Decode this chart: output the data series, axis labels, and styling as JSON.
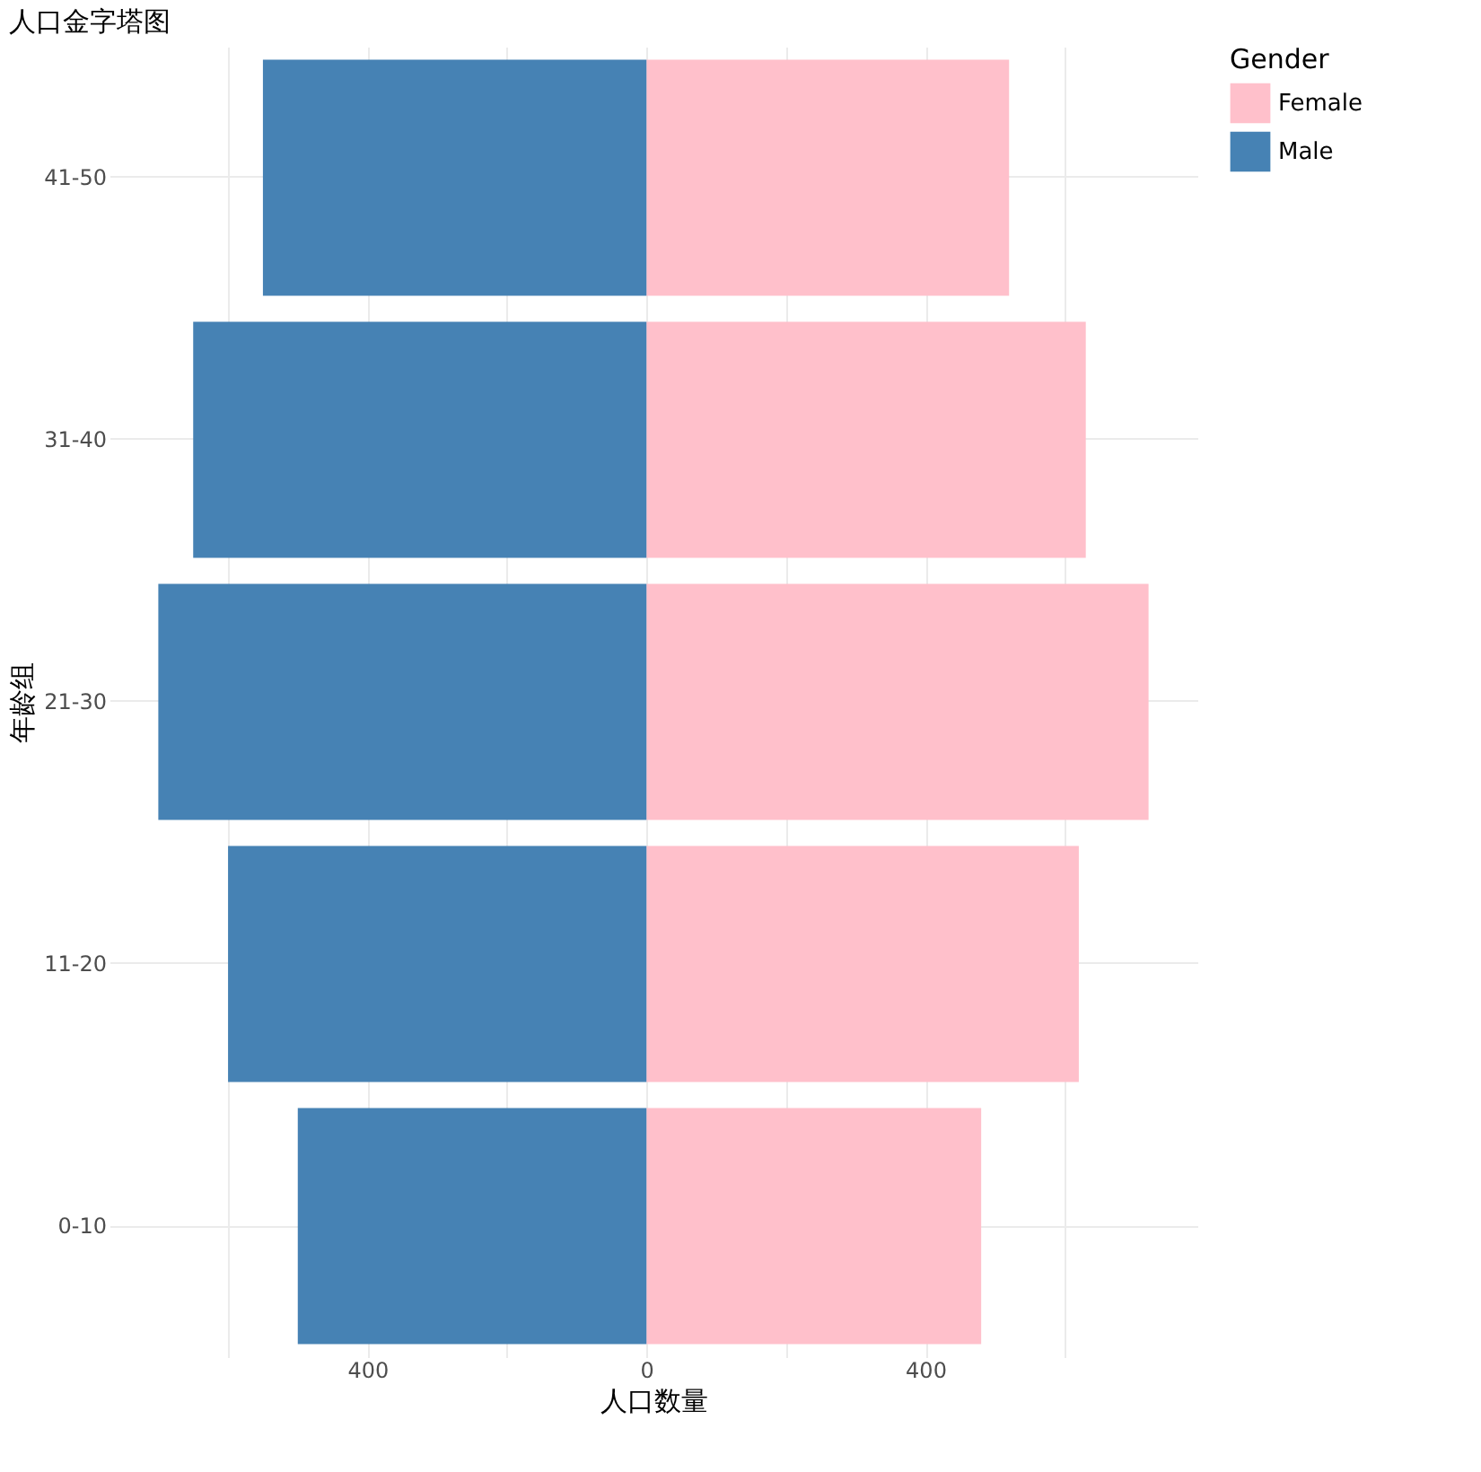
{
  "chart_data": {
    "type": "bar",
    "orientation": "horizontal",
    "title": "人口金字塔图",
    "xlabel": "人口数量",
    "ylabel": "年龄组",
    "legend_title": "Gender",
    "categories": [
      "41-50",
      "31-40",
      "21-30",
      "11-20",
      "0-10"
    ],
    "series": [
      {
        "name": "Female",
        "color": "#ffc0cb",
        "values": [
          520,
          630,
          720,
          620,
          480
        ]
      },
      {
        "name": "Male",
        "color": "#4682b4",
        "values": [
          -550,
          -650,
          -700,
          -600,
          -500
        ]
      }
    ],
    "xlim": [
      -770,
      790
    ],
    "xticks": [
      {
        "value": -600,
        "label": null
      },
      {
        "value": -400,
        "label": "400"
      },
      {
        "value": -200,
        "label": null
      },
      0,
      {
        "value": 200,
        "label": null
      },
      {
        "value": 400,
        "label": "400"
      },
      {
        "value": 600,
        "label": null
      }
    ],
    "stacked": true,
    "grid": true,
    "legend": "right"
  }
}
